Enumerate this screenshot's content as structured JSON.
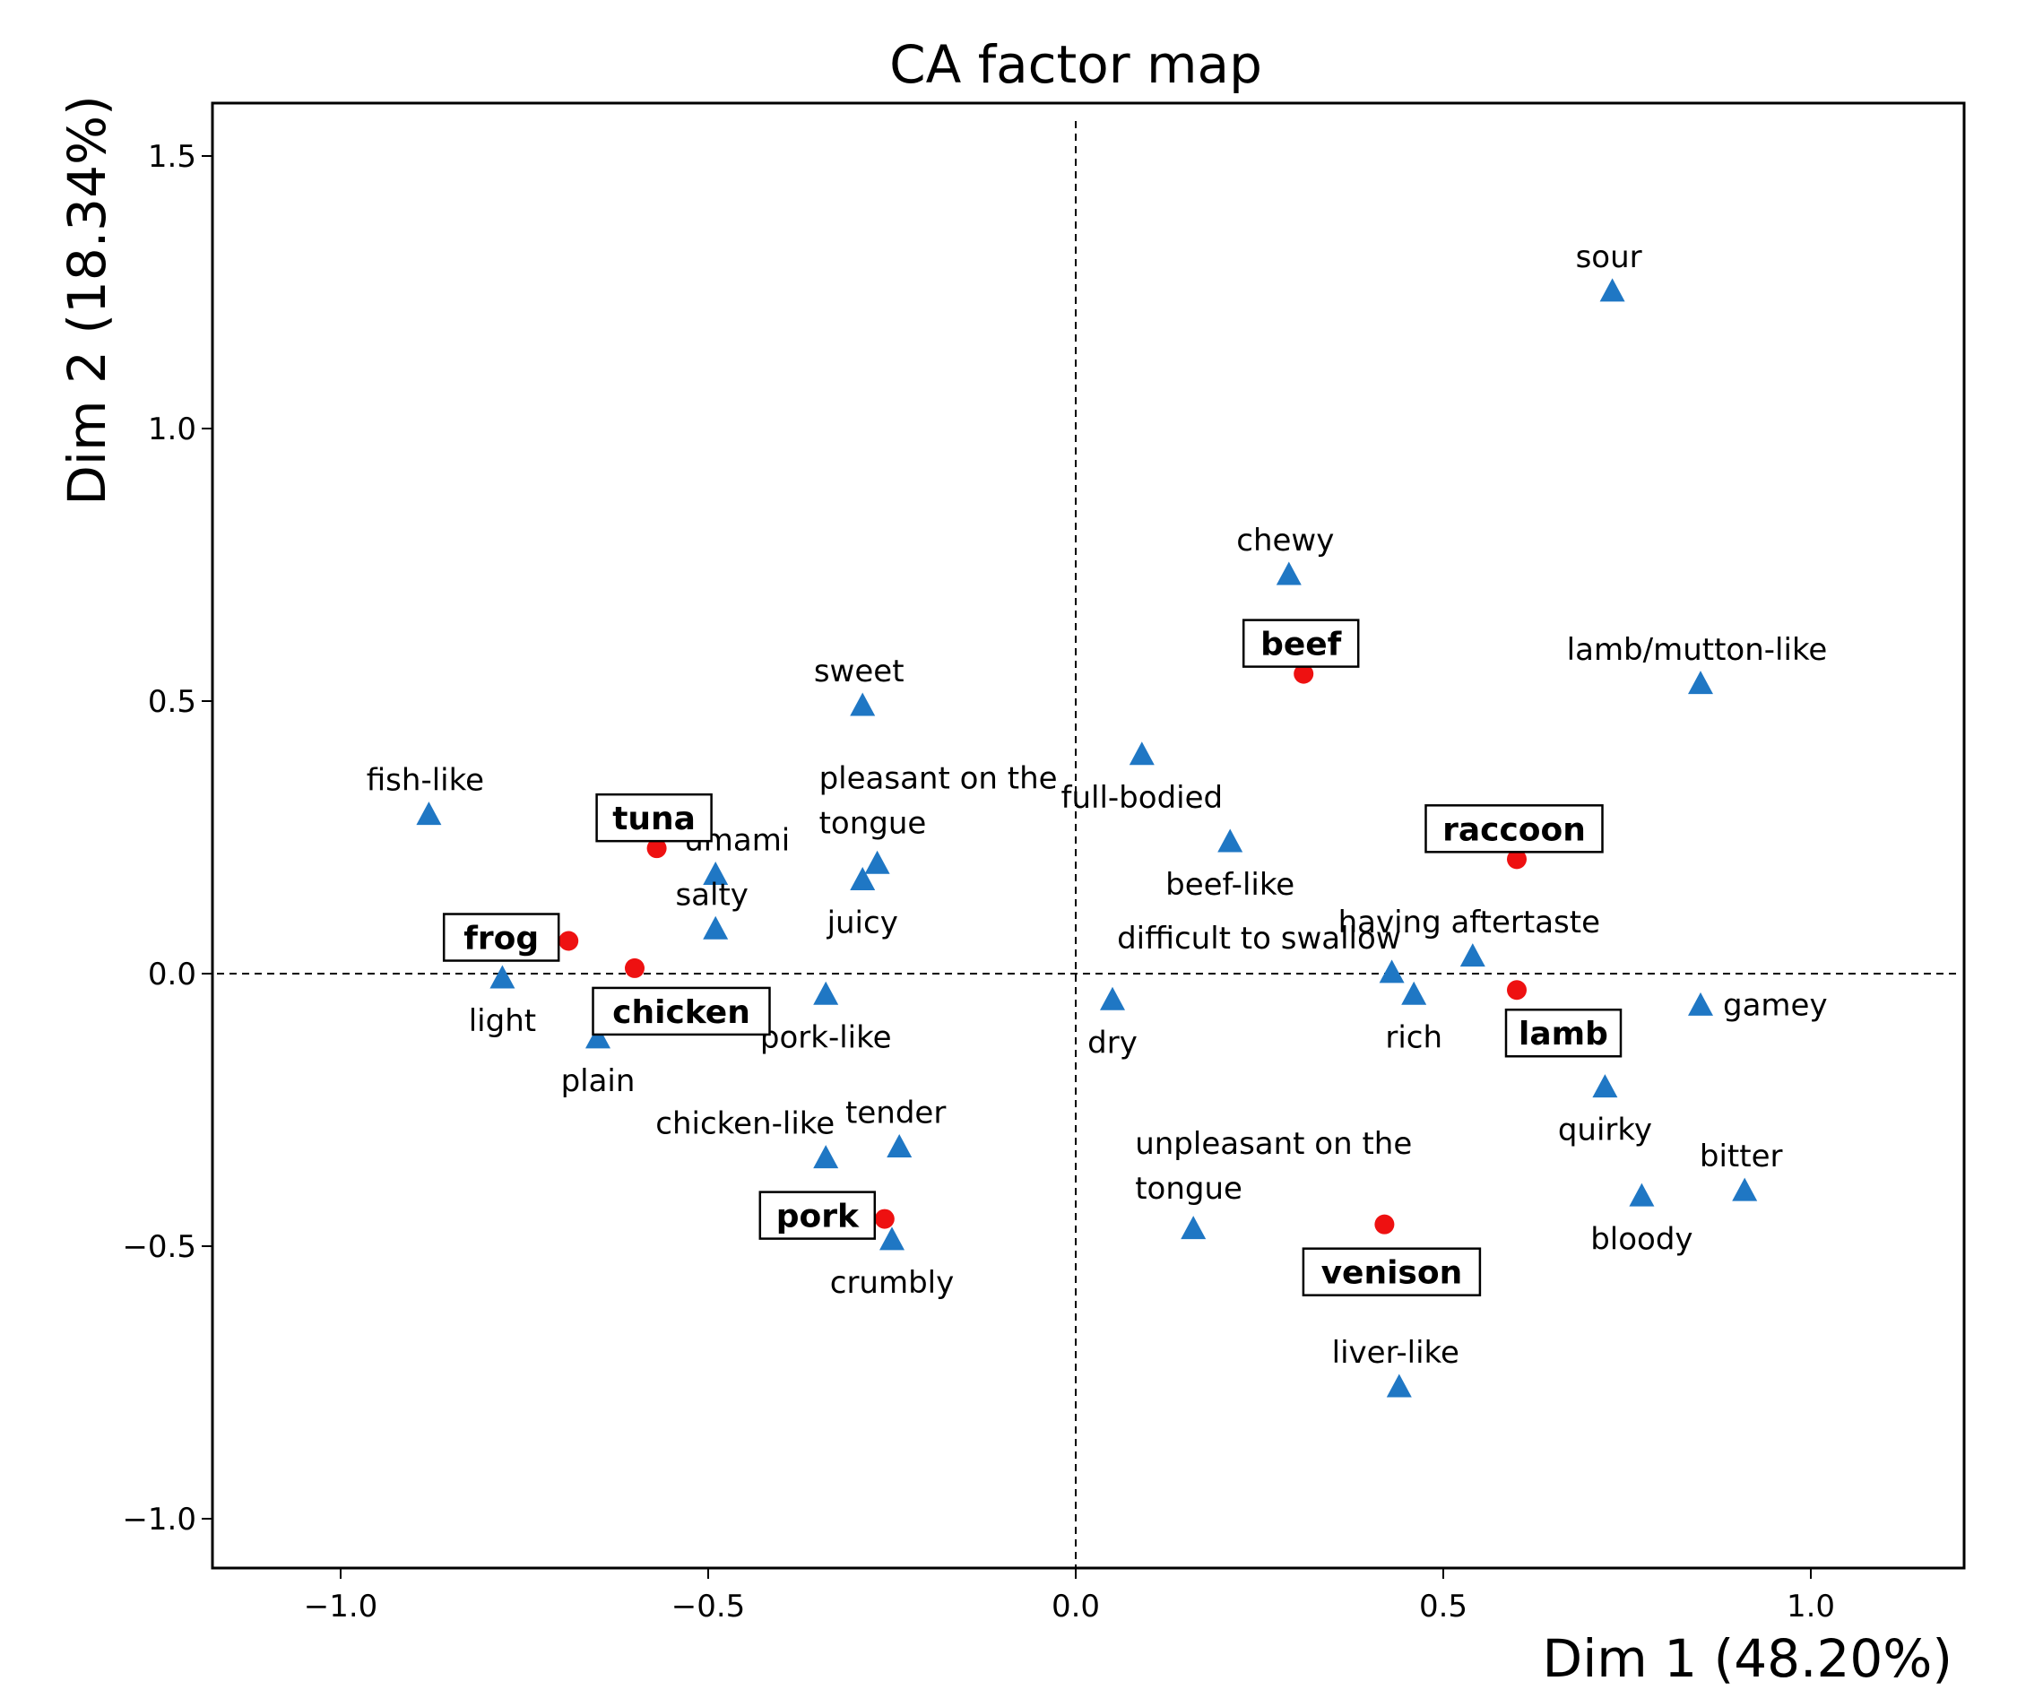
{
  "chart_data": {
    "type": "scatter",
    "title": "CA factor map",
    "xlabel": "Dim 1 (48.20%)",
    "ylabel": "Dim 2 (18.34%)",
    "xlim": [
      -1.2,
      1.2
    ],
    "ylim": [
      -1.08,
      1.6
    ],
    "xticks": [
      {
        "value": -1.0,
        "label": "−1.0"
      },
      {
        "value": -0.5,
        "label": "−0.5"
      },
      {
        "value": 0.0,
        "label": "0.0"
      },
      {
        "value": 0.5,
        "label": "0.5"
      },
      {
        "value": 1.0,
        "label": "1.0"
      }
    ],
    "yticks": [
      {
        "value": -1.0,
        "label": "−1.0"
      },
      {
        "value": -0.5,
        "label": "−0.5"
      },
      {
        "value": 0.0,
        "label": "0.0"
      },
      {
        "value": 0.5,
        "label": "0.5"
      },
      {
        "value": 1.0,
        "label": "1.0"
      },
      {
        "value": 1.5,
        "label": "1.5"
      }
    ],
    "reference_lines": {
      "x": 0.0,
      "y": 0.0,
      "style": "dashed"
    },
    "series": [
      {
        "name": "rows",
        "marker": "circle",
        "color": "#ee1111",
        "points": [
          {
            "label": "beef",
            "x": 0.31,
            "y": 0.55,
            "label_pos": "above"
          },
          {
            "label": "tuna",
            "x": -0.57,
            "y": 0.23,
            "label_pos": "above"
          },
          {
            "label": "frog",
            "x": -0.69,
            "y": 0.06,
            "label_pos": "left"
          },
          {
            "label": "chicken",
            "x": -0.6,
            "y": 0.01,
            "label_pos": "below-right"
          },
          {
            "label": "raccoon",
            "x": 0.6,
            "y": 0.21,
            "label_pos": "above"
          },
          {
            "label": "lamb",
            "x": 0.6,
            "y": -0.03,
            "label_pos": "below-right"
          },
          {
            "label": "pork",
            "x": -0.26,
            "y": -0.45,
            "label_pos": "left"
          },
          {
            "label": "venison",
            "x": 0.42,
            "y": -0.46,
            "label_pos": "below"
          }
        ]
      },
      {
        "name": "columns",
        "marker": "triangle",
        "color": "#1f77c4",
        "points": [
          {
            "label": "sour",
            "x": 0.73,
            "y": 1.25,
            "label_pos": "above"
          },
          {
            "label": "chewy",
            "x": 0.29,
            "y": 0.73,
            "label_pos": "above"
          },
          {
            "label": "lamb/mutton-like",
            "x": 0.85,
            "y": 0.53,
            "label_pos": "above"
          },
          {
            "label": "sweet",
            "x": -0.29,
            "y": 0.49,
            "label_pos": "above"
          },
          {
            "label": "full-bodied",
            "x": 0.09,
            "y": 0.4,
            "label_pos": "below"
          },
          {
            "label": "fish-like",
            "x": -0.88,
            "y": 0.29,
            "label_pos": "above"
          },
          {
            "label": "beef-like",
            "x": 0.21,
            "y": 0.24,
            "label_pos": "below"
          },
          {
            "label": "umami",
            "x": -0.49,
            "y": 0.18,
            "label_pos": "above-right"
          },
          {
            "label": "pleasant on the tongue",
            "x": -0.27,
            "y": 0.2,
            "label_pos": "above-two-line"
          },
          {
            "label": "juicy",
            "x": -0.29,
            "y": 0.17,
            "label_pos": "below"
          },
          {
            "label": "salty",
            "x": -0.49,
            "y": 0.08,
            "label_pos": "above"
          },
          {
            "label": "having aftertaste",
            "x": 0.54,
            "y": 0.03,
            "label_pos": "above"
          },
          {
            "label": "difficult to swallow",
            "x": 0.43,
            "y": 0.0,
            "label_pos": "above-left"
          },
          {
            "label": "light",
            "x": -0.78,
            "y": -0.01,
            "label_pos": "below"
          },
          {
            "label": "rich",
            "x": 0.46,
            "y": -0.04,
            "label_pos": "below"
          },
          {
            "label": "pork-like",
            "x": -0.34,
            "y": -0.04,
            "label_pos": "below"
          },
          {
            "label": "dry",
            "x": 0.05,
            "y": -0.05,
            "label_pos": "below"
          },
          {
            "label": "gamey",
            "x": 0.85,
            "y": -0.06,
            "label_pos": "right"
          },
          {
            "label": "plain",
            "x": -0.65,
            "y": -0.12,
            "label_pos": "below"
          },
          {
            "label": "quirky",
            "x": 0.72,
            "y": -0.21,
            "label_pos": "below"
          },
          {
            "label": "tender",
            "x": -0.24,
            "y": -0.32,
            "label_pos": "above"
          },
          {
            "label": "chicken-like",
            "x": -0.34,
            "y": -0.34,
            "label_pos": "above-left"
          },
          {
            "label": "bitter",
            "x": 0.91,
            "y": -0.4,
            "label_pos": "above"
          },
          {
            "label": "bloody",
            "x": 0.77,
            "y": -0.41,
            "label_pos": "below"
          },
          {
            "label": "unpleasant on the tongue",
            "x": 0.16,
            "y": -0.47,
            "label_pos": "above-two-line"
          },
          {
            "label": "crumbly",
            "x": -0.25,
            "y": -0.49,
            "label_pos": "below"
          },
          {
            "label": "liver-like",
            "x": 0.44,
            "y": -0.76,
            "label_pos": "above"
          }
        ]
      }
    ]
  }
}
